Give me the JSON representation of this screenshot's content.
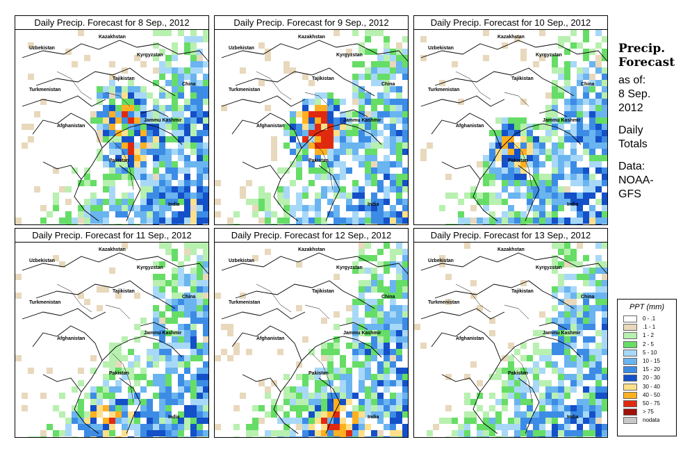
{
  "panels": [
    {
      "title": "Daily Precip. Forecast for  8 Sep., 2012",
      "seed": 11,
      "hot": [
        [
          0.52,
          0.38
        ],
        [
          0.58,
          0.55
        ]
      ]
    },
    {
      "title": "Daily Precip. Forecast for  9 Sep., 2012",
      "seed": 23,
      "hot": [
        [
          0.52,
          0.45
        ],
        [
          0.5,
          0.52
        ]
      ]
    },
    {
      "title": "Daily Precip. Forecast for  10 Sep., 2012",
      "seed": 37,
      "hot": [
        [
          0.5,
          0.58
        ]
      ]
    },
    {
      "title": "Daily Precip. Forecast for  11 Sep., 2012",
      "seed": 41,
      "hot": [
        [
          0.45,
          0.88
        ]
      ]
    },
    {
      "title": "Daily Precip. Forecast for  12 Sep., 2012",
      "seed": 53,
      "hot": [
        [
          0.62,
          0.88
        ]
      ]
    },
    {
      "title": "Daily Precip. Forecast for  13 Sep., 2012",
      "seed": 67,
      "hot": []
    }
  ],
  "map_labels": {
    "uzbekistan": "Uzbekistan",
    "kazakhstan": "Kazakhstan",
    "kyrgyzstan": "Kyrgyzstan",
    "tajikistan": "Tajikistan",
    "turkmenistan": "Turkmenistan",
    "china": "China",
    "afghanistan": "Afghanistan",
    "jammu_kashmir": "Jammu Kashmir",
    "pakistan": "Pakistan",
    "india": "India"
  },
  "sidebar": {
    "heading_1": "Precip.",
    "heading_2": "Forecast",
    "asof_1": "as of:",
    "asof_2": "8 Sep.",
    "asof_3": "2012",
    "totals_1": "Daily",
    "totals_2": "Totals",
    "data_1": "Data:",
    "data_2": "NOAA-",
    "data_3": "GFS"
  },
  "legend": {
    "title": "PPT (mm)",
    "items": [
      {
        "label": "0 - .1",
        "color": "#ffffff"
      },
      {
        "label": ".1 - 1",
        "color": "#e8d8bc"
      },
      {
        "label": "1 - 2",
        "color": "#b8f0b0"
      },
      {
        "label": "2 - 5",
        "color": "#66dd66"
      },
      {
        "label": "5 - 10",
        "color": "#a8d8f8"
      },
      {
        "label": "10 - 15",
        "color": "#6ab4f0"
      },
      {
        "label": "15 - 20",
        "color": "#3c8ce6"
      },
      {
        "label": "20 - 30",
        "color": "#1450c8"
      },
      {
        "label": "30 - 40",
        "color": "#ffe08a"
      },
      {
        "label": "40 - 50",
        "color": "#ffb020"
      },
      {
        "label": "50 - 75",
        "color": "#e02a10"
      },
      {
        "label": "> 75",
        "color": "#a01008"
      },
      {
        "label": "nodata",
        "color": "#c8c8c8"
      }
    ]
  }
}
